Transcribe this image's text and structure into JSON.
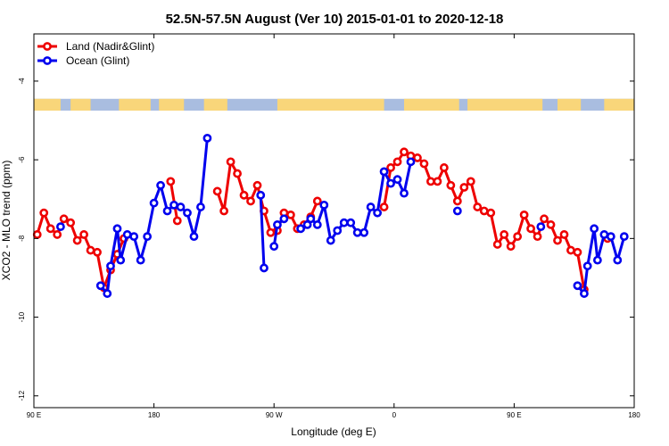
{
  "chart_data": {
    "type": "line",
    "title": "52.5N-57.5N August (Ver 10)   2015-01-01 to 2020-12-18",
    "xlabel": "Longitude (deg E)",
    "ylabel": "XCO2 - MLO trend (ppm)",
    "xlim": [
      90,
      450
    ],
    "ylim": [
      -12.3,
      -2.8
    ],
    "x_ticks": [
      {
        "value": 90,
        "label": "90 E"
      },
      {
        "value": 162,
        "label": "180"
      },
      {
        "value": 234,
        "label": "90 W"
      },
      {
        "value": 306,
        "label": "0"
      },
      {
        "value": 378,
        "label": "90 E"
      },
      {
        "value": 450,
        "label": "180"
      }
    ],
    "y_ticks": [
      {
        "value": -4,
        "label": "-4"
      },
      {
        "value": -6,
        "label": "-6"
      },
      {
        "value": -8,
        "label": "-8"
      },
      {
        "value": -10,
        "label": "-10"
      },
      {
        "value": -12,
        "label": "-12"
      }
    ],
    "map_strip": {
      "y_top": -4.45,
      "y_bottom": -4.75,
      "ocean_color": "#a9bde0",
      "land_color": "#f9d67a"
    },
    "legend": {
      "position": "top-left"
    },
    "series": [
      {
        "name": "Land (Nadir&Glint)",
        "color": "#ee0000",
        "segments": [
          [
            [
              92,
              -7.9
            ],
            [
              96,
              -7.35
            ],
            [
              100,
              -7.75
            ],
            [
              104,
              -7.9
            ],
            [
              108,
              -7.5
            ],
            [
              112,
              -7.6
            ],
            [
              116,
              -8.05
            ],
            [
              120,
              -7.9
            ],
            [
              124,
              -8.3
            ],
            [
              128,
              -8.35
            ],
            [
              132,
              -9.25
            ],
            [
              136,
              -8.8
            ],
            [
              140,
              -8.4
            ],
            [
              144,
              -8.0
            ]
          ],
          [
            [
              172,
              -6.55
            ],
            [
              176,
              -7.55
            ]
          ],
          [
            [
              200,
              -6.8
            ],
            [
              204,
              -7.3
            ],
            [
              208,
              -6.05
            ],
            [
              212,
              -6.35
            ],
            [
              216,
              -6.9
            ],
            [
              220,
              -7.05
            ],
            [
              224,
              -6.65
            ],
            [
              228,
              -7.3
            ],
            [
              232,
              -7.85
            ],
            [
              236,
              -7.8
            ],
            [
              240,
              -7.35
            ],
            [
              244,
              -7.4
            ],
            [
              248,
              -7.75
            ],
            [
              252,
              -7.65
            ],
            [
              256,
              -7.45
            ],
            [
              260,
              -7.05
            ]
          ],
          [
            [
              300,
              -7.2
            ],
            [
              304,
              -6.2
            ],
            [
              308,
              -6.05
            ],
            [
              312,
              -5.8
            ],
            [
              316,
              -5.9
            ],
            [
              320,
              -5.95
            ],
            [
              324,
              -6.1
            ],
            [
              328,
              -6.55
            ],
            [
              332,
              -6.55
            ],
            [
              336,
              -6.2
            ],
            [
              340,
              -6.65
            ],
            [
              344,
              -7.05
            ],
            [
              348,
              -6.7
            ],
            [
              352,
              -6.55
            ],
            [
              356,
              -7.2
            ],
            [
              360,
              -7.3
            ],
            [
              364,
              -7.35
            ],
            [
              368,
              -8.15
            ],
            [
              372,
              -7.9
            ],
            [
              376,
              -8.2
            ],
            [
              380,
              -7.95
            ],
            [
              384,
              -7.4
            ],
            [
              388,
              -7.75
            ],
            [
              392,
              -7.95
            ],
            [
              396,
              -7.5
            ],
            [
              400,
              -7.65
            ],
            [
              404,
              -8.05
            ],
            [
              408,
              -7.9
            ],
            [
              412,
              -8.3
            ],
            [
              416,
              -8.35
            ],
            [
              420,
              -9.3
            ]
          ],
          [
            [
              434,
              -8.0
            ]
          ]
        ]
      },
      {
        "name": "Ocean (Glint)",
        "color": "#0000ee",
        "segments": [
          [
            [
              106,
              -7.7
            ]
          ],
          [
            [
              130,
              -9.2
            ],
            [
              134,
              -9.4
            ],
            [
              136,
              -8.7
            ],
            [
              140,
              -7.75
            ],
            [
              142,
              -8.55
            ],
            [
              146,
              -7.9
            ],
            [
              150,
              -7.95
            ],
            [
              154,
              -8.55
            ],
            [
              158,
              -7.95
            ],
            [
              162,
              -7.1
            ],
            [
              166,
              -6.65
            ],
            [
              170,
              -7.3
            ],
            [
              174,
              -7.15
            ],
            [
              178,
              -7.2
            ],
            [
              182,
              -7.35
            ],
            [
              186,
              -7.95
            ],
            [
              190,
              -7.2
            ],
            [
              194,
              -5.45
            ]
          ],
          [
            [
              226,
              -6.9
            ],
            [
              228,
              -8.75
            ]
          ],
          [
            [
              234,
              -8.2
            ],
            [
              236,
              -7.65
            ],
            [
              240,
              -7.5
            ]
          ],
          [
            [
              250,
              -7.75
            ],
            [
              254,
              -7.65
            ],
            [
              256,
              -7.5
            ],
            [
              260,
              -7.65
            ],
            [
              264,
              -7.15
            ],
            [
              268,
              -8.05
            ],
            [
              272,
              -7.8
            ],
            [
              276,
              -7.6
            ],
            [
              280,
              -7.6
            ],
            [
              284,
              -7.85
            ],
            [
              288,
              -7.85
            ],
            [
              292,
              -7.2
            ],
            [
              296,
              -7.35
            ],
            [
              300,
              -6.3
            ],
            [
              304,
              -6.6
            ],
            [
              308,
              -6.5
            ],
            [
              312,
              -6.85
            ],
            [
              316,
              -6.05
            ]
          ],
          [
            [
              344,
              -7.3
            ]
          ],
          [
            [
              394,
              -7.7
            ]
          ],
          [
            [
              416,
              -9.2
            ],
            [
              420,
              -9.4
            ],
            [
              422,
              -8.7
            ],
            [
              426,
              -7.75
            ],
            [
              428,
              -8.55
            ],
            [
              432,
              -7.9
            ],
            [
              436,
              -7.95
            ],
            [
              440,
              -8.55
            ],
            [
              444,
              -7.95
            ]
          ]
        ]
      }
    ]
  }
}
